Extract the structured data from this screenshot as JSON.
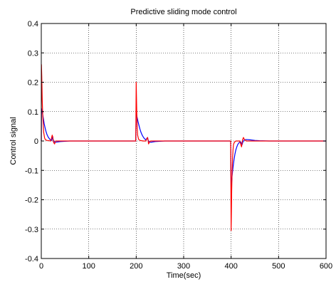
{
  "chart_data": {
    "type": "line",
    "title": "Predictive sliding mode control",
    "xlabel": "Time(sec)",
    "ylabel": "Control signal",
    "xlim": [
      0,
      600
    ],
    "ylim": [
      -0.4,
      0.4
    ],
    "grid": true,
    "x_ticks": [
      0,
      100,
      200,
      300,
      400,
      500,
      600
    ],
    "y_ticks": [
      -0.4,
      -0.3,
      -0.2,
      -0.1,
      0,
      0.1,
      0.2,
      0.3,
      0.4
    ],
    "x_tick_labels": [
      "0",
      "100",
      "200",
      "300",
      "400",
      "500",
      "600"
    ],
    "y_tick_labels": [
      "-0.4",
      "-0.3",
      "-0.2",
      "-0.1",
      "0",
      "0.1",
      "0.2",
      "0.3",
      "0.4"
    ],
    "series": [
      {
        "color": "#0000ff",
        "points": [
          [
            0,
            0
          ],
          [
            0.5,
            0.11
          ],
          [
            2,
            0.1
          ],
          [
            4,
            0.08
          ],
          [
            6,
            0.06
          ],
          [
            8,
            0.045
          ],
          [
            10,
            0.032
          ],
          [
            12,
            0.022
          ],
          [
            14,
            0.015
          ],
          [
            16,
            0.01
          ],
          [
            18,
            0.006
          ],
          [
            20,
            0.003
          ],
          [
            22,
            0.002
          ],
          [
            24,
            0.015
          ],
          [
            25,
            0.005
          ],
          [
            27,
            -0.003
          ],
          [
            30,
            -0.004
          ],
          [
            35,
            -0.003
          ],
          [
            40,
            -0.002
          ],
          [
            50,
            -0.001
          ],
          [
            60,
            0
          ],
          [
            100,
            0
          ],
          [
            199,
            0
          ],
          [
            200,
            0.095
          ],
          [
            202,
            0.08
          ],
          [
            204,
            0.065
          ],
          [
            206,
            0.052
          ],
          [
            208,
            0.04
          ],
          [
            210,
            0.03
          ],
          [
            212,
            0.022
          ],
          [
            214,
            0.016
          ],
          [
            216,
            0.011
          ],
          [
            218,
            0.007
          ],
          [
            220,
            0.004
          ],
          [
            224,
            0.012
          ],
          [
            225,
            0.003
          ],
          [
            228,
            -0.004
          ],
          [
            232,
            -0.004
          ],
          [
            240,
            -0.002
          ],
          [
            250,
            -0.001
          ],
          [
            260,
            0
          ],
          [
            300,
            0
          ],
          [
            399,
            0
          ],
          [
            400,
            -0.165
          ],
          [
            402,
            -0.12
          ],
          [
            404,
            -0.09
          ],
          [
            406,
            -0.065
          ],
          [
            408,
            -0.045
          ],
          [
            410,
            -0.03
          ],
          [
            412,
            -0.02
          ],
          [
            414,
            -0.012
          ],
          [
            416,
            -0.007
          ],
          [
            418,
            -0.004
          ],
          [
            420,
            -0.003
          ],
          [
            423,
            -0.013
          ],
          [
            425,
            -0.002
          ],
          [
            428,
            0.004
          ],
          [
            432,
            0.005
          ],
          [
            440,
            0.004
          ],
          [
            450,
            0.002
          ],
          [
            460,
            0.001
          ],
          [
            480,
            0
          ],
          [
            600,
            0
          ]
        ]
      },
      {
        "color": "#ff0000",
        "points": [
          [
            0,
            0
          ],
          [
            0.3,
            0.26
          ],
          [
            1,
            0.22
          ],
          [
            2,
            0.14
          ],
          [
            3,
            0.09
          ],
          [
            4,
            0.06
          ],
          [
            5,
            0.03
          ],
          [
            7,
            0.01
          ],
          [
            9,
            0.004
          ],
          [
            12,
            0.002
          ],
          [
            16,
            0.001
          ],
          [
            20,
            0
          ],
          [
            23,
            0.02
          ],
          [
            24,
            0.015
          ],
          [
            26,
            -0.005
          ],
          [
            28,
            -0.01
          ],
          [
            30,
            0
          ],
          [
            40,
            0
          ],
          [
            199,
            0
          ],
          [
            200,
            0.2
          ],
          [
            200.6,
            0.15
          ],
          [
            201.2,
            0.1
          ],
          [
            202,
            0.05
          ],
          [
            203,
            0.02
          ],
          [
            205,
            0.006
          ],
          [
            208,
            0.002
          ],
          [
            215,
            0
          ],
          [
            220,
            0
          ],
          [
            224,
            0.012
          ],
          [
            225,
            0.003
          ],
          [
            226,
            -0.01
          ],
          [
            228,
            -0.004
          ],
          [
            230,
            0
          ],
          [
            240,
            0
          ],
          [
            399,
            0
          ],
          [
            400,
            -0.305
          ],
          [
            400.6,
            -0.24
          ],
          [
            401.2,
            -0.17
          ],
          [
            402,
            -0.11
          ],
          [
            403,
            -0.06
          ],
          [
            404,
            -0.03
          ],
          [
            405,
            -0.012
          ],
          [
            407,
            -0.004
          ],
          [
            410,
            0
          ],
          [
            418,
            0
          ],
          [
            422,
            -0.02
          ],
          [
            424,
            0.004
          ],
          [
            426,
            0.012
          ],
          [
            428,
            0.005
          ],
          [
            432,
            0
          ],
          [
            600,
            0
          ]
        ]
      }
    ]
  }
}
